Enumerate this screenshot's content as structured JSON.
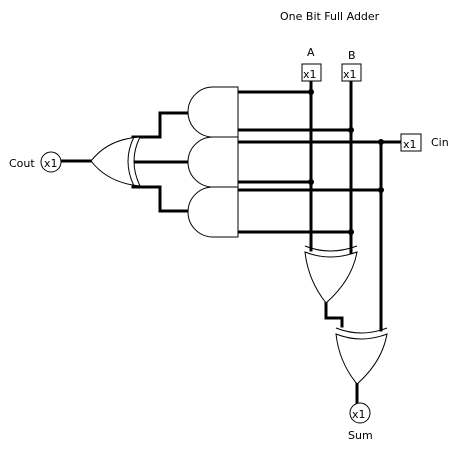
{
  "diagram": {
    "title": "One Bit Full Adder",
    "inputs": {
      "a": {
        "label": "A",
        "pin_text": "x1"
      },
      "b": {
        "label": "B",
        "pin_text": "x1"
      },
      "cin": {
        "label": "Cin",
        "pin_text": "x1"
      }
    },
    "outputs": {
      "cout": {
        "label": "Cout",
        "pin_text": "x1"
      },
      "sum": {
        "label": "Sum",
        "pin_text": "x1"
      }
    }
  }
}
